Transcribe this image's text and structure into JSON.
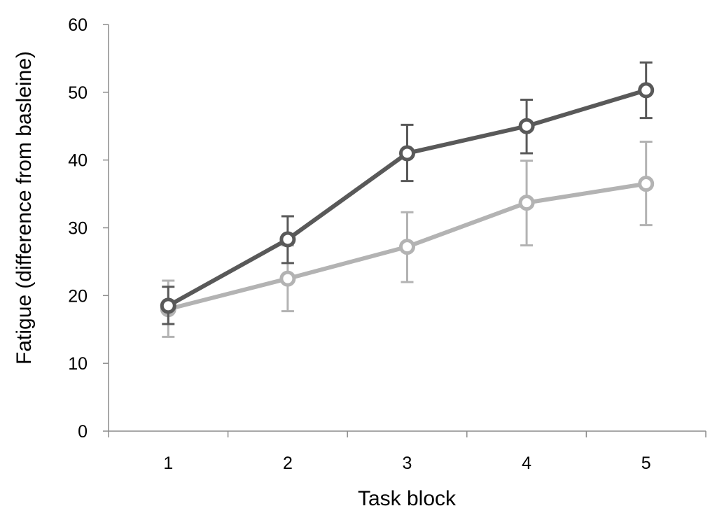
{
  "chart_data": {
    "type": "line",
    "title": "",
    "xlabel": "Task block",
    "ylabel": "Fatigue (difference from basleine)",
    "categories": [
      "1",
      "2",
      "3",
      "4",
      "5"
    ],
    "ylim": [
      0,
      60
    ],
    "yticks": [
      0,
      10,
      20,
      30,
      40,
      50,
      60
    ],
    "grid": false,
    "legend": "none",
    "series": [
      {
        "color": "#595959",
        "values": [
          18.5,
          28.3,
          41.0,
          45.0,
          50.3
        ],
        "err_low": [
          15.8,
          24.8,
          36.9,
          41.0,
          46.2
        ],
        "err_high": [
          21.3,
          31.7,
          45.2,
          48.9,
          54.4
        ]
      },
      {
        "color": "#b3b3b3",
        "values": [
          18.0,
          22.5,
          27.2,
          33.7,
          36.5
        ],
        "err_low": [
          13.9,
          17.7,
          22.0,
          27.4,
          30.4
        ],
        "err_high": [
          22.2,
          27.4,
          32.3,
          39.9,
          42.7
        ]
      }
    ]
  }
}
